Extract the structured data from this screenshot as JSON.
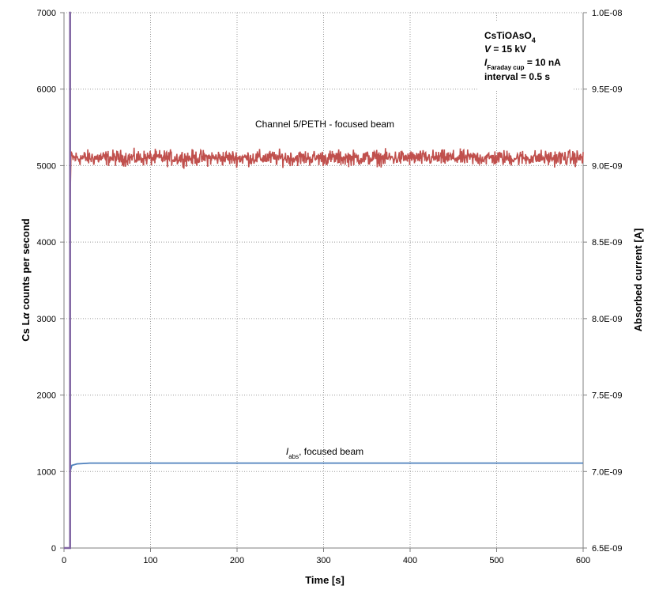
{
  "colors": {
    "counts_series": "#c0504d",
    "current_series": "#4f81bd",
    "initial_spike": "#8064a2",
    "grid": "#999999",
    "axis": "#7f7f7f"
  },
  "chart_data": {
    "type": "line",
    "xlabel": "Time [s]",
    "ylabel_left": {
      "part1": "Cs L",
      "part2": "α",
      "part3": " counts per second"
    },
    "ylabel_right": "Absorbed current [A]",
    "xlim": [
      0,
      600
    ],
    "ylim_left": [
      0,
      7000
    ],
    "ylim_right": [
      6.5e-09,
      1e-08
    ],
    "x_ticks": [
      "0",
      "100",
      "200",
      "300",
      "400",
      "500",
      "600"
    ],
    "y_ticks_left": [
      "0",
      "1000",
      "2000",
      "3000",
      "4000",
      "5000",
      "6000",
      "7000"
    ],
    "y_ticks_right": [
      "6.5E-09",
      "7.0E-09",
      "7.5E-09",
      "8.0E-09",
      "8.5E-09",
      "9.0E-09",
      "9.5E-09",
      "1.0E-08"
    ],
    "grid": true,
    "series": [
      {
        "axis": "left",
        "x_start": 7,
        "x_end": 600,
        "x_step": 0.5,
        "mean": 5100,
        "noise_amplitude": 150,
        "values_approx": "noisy around 5100 counts/s, range about 4850–5380"
      },
      {
        "axis": "right",
        "x": [
          0,
          7,
          7,
          9,
          15,
          30,
          600
        ],
        "values": [
          6.5e-09,
          6.5e-09,
          7e-09,
          7.04e-09,
          7.05e-09,
          7.055e-09,
          7.055e-09
        ]
      },
      {
        "axis": "left",
        "x": [
          0,
          7,
          7,
          8
        ],
        "values": [
          0,
          0,
          7000,
          7000
        ]
      }
    ],
    "annotations": {
      "counts_label": "Channel 5/PETH - focused beam",
      "current_label": {
        "i": "I",
        "sub": "abs",
        "rest": ", focused beam"
      }
    },
    "legend_box": {
      "line1": {
        "main": "CsTiOAsO",
        "sub": "4"
      },
      "line2": {
        "italic": "V",
        "rest": " = 15 kV"
      },
      "line3": {
        "italic": "I",
        "sub": "Faraday cup",
        "rest": " = 10 nA"
      },
      "line4": "interval = 0.5 s",
      "position": "top-right"
    }
  }
}
